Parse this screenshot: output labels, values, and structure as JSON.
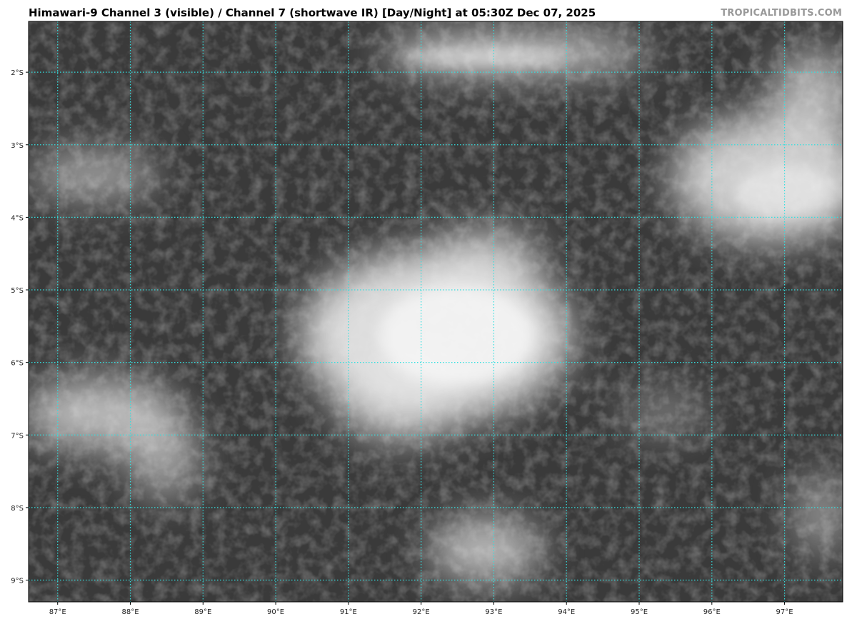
{
  "header": {
    "title": "Himawari-9 Channel 3 (visible) / Channel 7 (shortwave IR) [Day/Night] at 05:30Z Dec 07, 2025",
    "watermark": "TROPICALTIDBITS.COM"
  },
  "map": {
    "type": "satellite-imagery",
    "extent": {
      "lon": [
        86.6,
        97.8
      ],
      "lat": [
        -1.3,
        -9.3
      ]
    },
    "grid_color": "#33e0e0",
    "background_color": "#3a3a3a",
    "longitude_labels": [
      {
        "value": 87,
        "label": "87°E"
      },
      {
        "value": 88,
        "label": "88°E"
      },
      {
        "value": 89,
        "label": "89°E"
      },
      {
        "value": 90,
        "label": "90°E"
      },
      {
        "value": 91,
        "label": "91°E"
      },
      {
        "value": 92,
        "label": "92°E"
      },
      {
        "value": 93,
        "label": "93°E"
      },
      {
        "value": 94,
        "label": "94°E"
      },
      {
        "value": 95,
        "label": "95°E"
      },
      {
        "value": 96,
        "label": "96°E"
      },
      {
        "value": 97,
        "label": "97°E"
      }
    ],
    "latitude_labels": [
      {
        "value": -2,
        "label": "2°S"
      },
      {
        "value": -3,
        "label": "3°S"
      },
      {
        "value": -4,
        "label": "4°S"
      },
      {
        "value": -5,
        "label": "5°S"
      },
      {
        "value": -6,
        "label": "6°S"
      },
      {
        "value": -7,
        "label": "7°S"
      },
      {
        "value": -8,
        "label": "8°S"
      },
      {
        "value": -9,
        "label": "9°S"
      }
    ]
  }
}
